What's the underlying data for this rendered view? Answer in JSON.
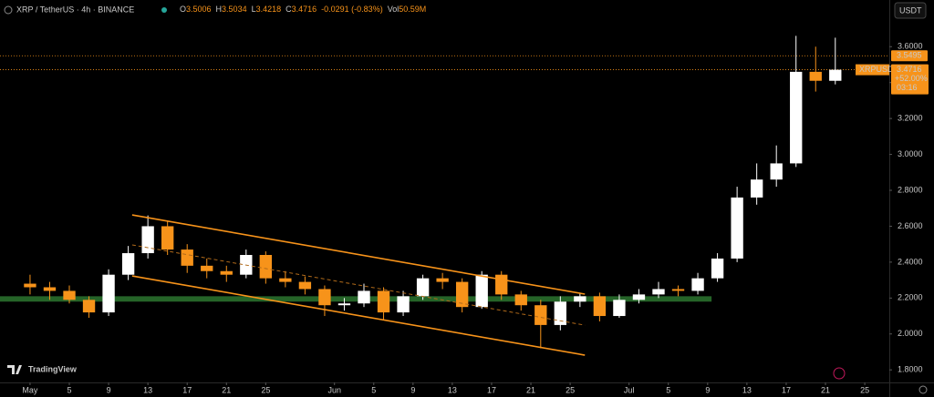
{
  "chart_data": {
    "type": "candlestick",
    "header": {
      "symbol": "XRP / TetherUS · 4h · BINANCE",
      "ohlc": [
        {
          "label": "O",
          "value": "3.5006"
        },
        {
          "label": "H",
          "value": "3.5034"
        },
        {
          "label": "L",
          "value": "3.4218"
        },
        {
          "label": "C",
          "value": "3.4716"
        },
        {
          "label": "",
          "value": "-0.0291 (-0.83%)"
        },
        {
          "label": "Vol",
          "value": "50.59M"
        }
      ]
    },
    "currency": "USDT",
    "brand": "TradingView",
    "x": [
      0,
      2,
      4,
      6,
      8,
      10,
      12,
      14,
      16,
      18,
      20,
      22,
      24,
      26,
      28,
      30,
      32,
      34,
      36,
      38,
      40,
      42,
      44,
      46,
      48,
      50,
      52,
      54,
      56,
      58,
      60,
      62,
      64,
      66,
      68,
      70,
      72,
      74,
      76,
      78,
      80,
      82
    ],
    "open": [
      2.28,
      2.26,
      2.24,
      2.19,
      2.12,
      2.33,
      2.45,
      2.6,
      2.47,
      2.38,
      2.35,
      2.33,
      2.44,
      2.31,
      2.29,
      2.25,
      2.16,
      2.17,
      2.24,
      2.12,
      2.21,
      2.31,
      2.29,
      2.15,
      2.33,
      2.22,
      2.16,
      2.05,
      2.18,
      2.21,
      2.1,
      2.19,
      2.22,
      2.25,
      2.24,
      2.31,
      2.42,
      2.76,
      2.86,
      2.95,
      3.46,
      3.41
    ],
    "high": [
      2.33,
      2.29,
      2.27,
      2.21,
      2.36,
      2.49,
      2.66,
      2.63,
      2.5,
      2.42,
      2.38,
      2.47,
      2.46,
      2.35,
      2.32,
      2.27,
      2.2,
      2.28,
      2.26,
      2.24,
      2.33,
      2.34,
      2.31,
      2.35,
      2.35,
      2.24,
      2.19,
      2.21,
      2.23,
      2.23,
      2.22,
      2.25,
      2.29,
      2.27,
      2.34,
      2.45,
      2.82,
      2.95,
      3.05,
      3.66,
      3.6,
      3.65
    ],
    "low": [
      2.22,
      2.19,
      2.17,
      2.09,
      2.1,
      2.3,
      2.42,
      2.44,
      2.34,
      2.31,
      2.29,
      2.31,
      2.28,
      2.26,
      2.22,
      2.1,
      2.13,
      2.15,
      2.08,
      2.1,
      2.19,
      2.25,
      2.12,
      2.14,
      2.19,
      2.13,
      1.92,
      2.02,
      2.15,
      2.07,
      2.09,
      2.17,
      2.2,
      2.21,
      2.22,
      2.29,
      2.4,
      2.72,
      2.82,
      2.93,
      3.35,
      3.39
    ],
    "close": [
      2.26,
      2.24,
      2.19,
      2.12,
      2.33,
      2.45,
      2.6,
      2.47,
      2.38,
      2.35,
      2.33,
      2.44,
      2.31,
      2.29,
      2.25,
      2.16,
      2.17,
      2.24,
      2.12,
      2.21,
      2.31,
      2.29,
      2.15,
      2.33,
      2.22,
      2.16,
      2.05,
      2.18,
      2.21,
      2.1,
      2.19,
      2.22,
      2.25,
      2.24,
      2.31,
      2.42,
      2.76,
      2.86,
      2.95,
      3.46,
      3.41,
      3.4716
    ],
    "up_color": "#ffffff",
    "down_color": "#f7931a",
    "xlim": [
      -3.06,
      87.5
    ],
    "xticks": [
      {
        "value": 0,
        "label": "May"
      },
      {
        "value": 4,
        "label": "5"
      },
      {
        "value": 8,
        "label": "9"
      },
      {
        "value": 12,
        "label": "13"
      },
      {
        "value": 16,
        "label": "17"
      },
      {
        "value": 20,
        "label": "21"
      },
      {
        "value": 24,
        "label": "25"
      },
      {
        "value": 31,
        "label": "Jun"
      },
      {
        "value": 35,
        "label": "5"
      },
      {
        "value": 39,
        "label": "9"
      },
      {
        "value": 43,
        "label": "13"
      },
      {
        "value": 47,
        "label": "17"
      },
      {
        "value": 51,
        "label": "21"
      },
      {
        "value": 55,
        "label": "25"
      },
      {
        "value": 61,
        "label": "Jul"
      },
      {
        "value": 65,
        "label": "5"
      },
      {
        "value": 69,
        "label": "9"
      },
      {
        "value": 73,
        "label": "13"
      },
      {
        "value": 77,
        "label": "17"
      },
      {
        "value": 81,
        "label": "21"
      },
      {
        "value": 85,
        "label": "25"
      }
    ],
    "ylim": [
      1.73,
      3.86
    ],
    "yticks": [
      {
        "value": 1.8,
        "label": "1.8000"
      },
      {
        "value": 2.0,
        "label": "2.0000"
      },
      {
        "value": 2.2,
        "label": "2.2000"
      },
      {
        "value": 2.4,
        "label": "2.4000"
      },
      {
        "value": 2.6,
        "label": "2.6000"
      },
      {
        "value": 2.8,
        "label": "2.8000"
      },
      {
        "value": 3.0,
        "label": "3.0000"
      },
      {
        "value": 3.2,
        "label": "3.2000"
      },
      {
        "value": 3.4,
        "label": "3.4000"
      },
      {
        "value": 3.6,
        "label": "3.6000"
      }
    ],
    "trend_lines": [
      {
        "x": [
          10.4,
          56.5
        ],
        "y": [
          2.663,
          2.222
        ],
        "color": "#f7931a",
        "dashed": false
      },
      {
        "x": [
          10.4,
          56.5
        ],
        "y": [
          2.496,
          2.049
        ],
        "color": "#b06a1a",
        "dashed": true
      },
      {
        "x": [
          10.4,
          56.5
        ],
        "y": [
          2.323,
          1.882
        ],
        "color": "#f7931a",
        "dashed": false
      }
    ],
    "zone": {
      "x": [
        -3.06,
        69.4
      ],
      "y": [
        2.18,
        2.21
      ],
      "color": "#2e7d32"
    },
    "price_line": {
      "value": 3.5495,
      "color": "#f7931a"
    },
    "last_price": {
      "symbol": "XRPUSDT",
      "value": 3.4716,
      "change": "+52.00%",
      "countdown": "03:16",
      "color": "#f7931a"
    }
  }
}
